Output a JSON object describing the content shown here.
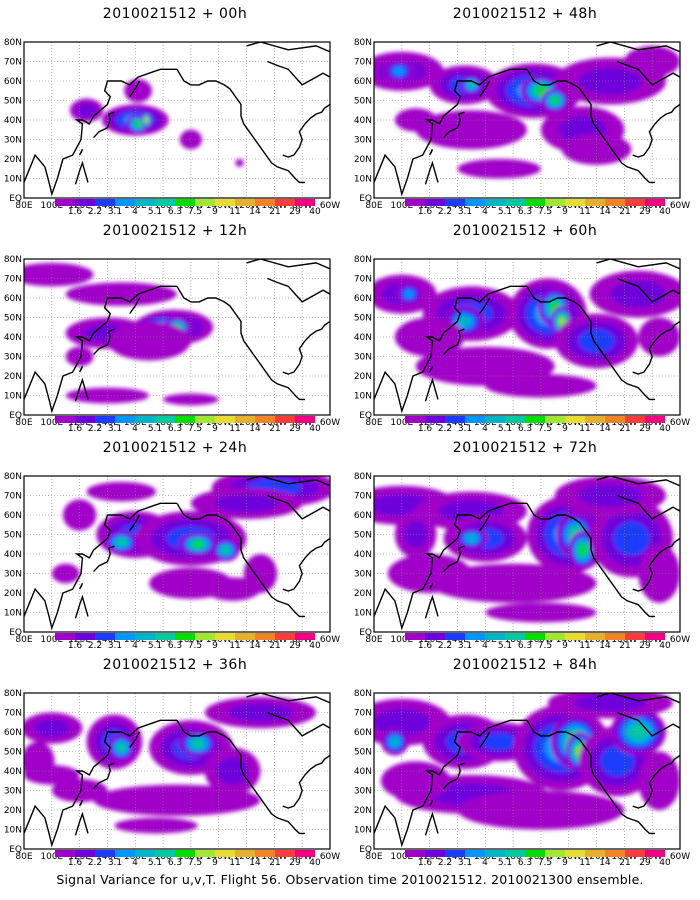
{
  "figure": {
    "caption": "Signal Variance for u,v,T. Flight 56. Observation time 2010021512. 2010021300 ensemble."
  },
  "map": {
    "lon_labels": [
      "80E",
      "100E",
      "120E",
      "140E",
      "160E",
      "180",
      "160W",
      "140W",
      "120W",
      "100W",
      "80W",
      "60W"
    ],
    "lat_labels": [
      "80N",
      "70N",
      "60N",
      "50N",
      "40N",
      "30N",
      "20N",
      "10N",
      "EQ"
    ],
    "lon_range": [
      80,
      300
    ],
    "lat_range": [
      0,
      80
    ]
  },
  "colorbar": {
    "labels": [
      "1.6",
      "2.2",
      "3.1",
      "4",
      "5.1",
      "6.3",
      "7.5",
      "9",
      "11",
      "14",
      "21",
      "29",
      "40"
    ],
    "colors": [
      "#a000c8",
      "#6e00dc",
      "#1e3cff",
      "#0096ff",
      "#00b4c8",
      "#00c8a0",
      "#00dc00",
      "#a0e632",
      "#e6dc32",
      "#e6af2d",
      "#f08228",
      "#fa3c3c",
      "#f00082"
    ]
  },
  "panels": [
    {
      "title": "2010021512 + 00h",
      "blobs": [
        [
          162,
          55,
          10,
          6,
          1
        ],
        [
          125,
          45,
          12,
          6,
          2
        ],
        [
          160,
          40,
          24,
          8,
          4
        ],
        [
          162,
          38,
          9,
          5,
          7
        ],
        [
          168,
          40,
          4,
          4,
          9
        ],
        [
          200,
          30,
          8,
          5,
          1
        ],
        [
          235,
          18,
          3,
          2,
          1
        ]
      ]
    },
    {
      "title": "2010021512 + 12h",
      "blobs": [
        [
          100,
          72,
          30,
          6,
          1
        ],
        [
          150,
          62,
          40,
          6,
          1
        ],
        [
          140,
          42,
          30,
          8,
          2
        ],
        [
          188,
          45,
          28,
          9,
          3
        ],
        [
          180,
          45,
          22,
          7,
          5
        ],
        [
          190,
          45,
          10,
          5,
          7
        ],
        [
          170,
          38,
          30,
          10,
          1
        ],
        [
          140,
          10,
          30,
          4,
          1
        ],
        [
          200,
          8,
          20,
          3,
          1
        ],
        [
          120,
          30,
          10,
          5,
          1
        ]
      ]
    },
    {
      "title": "2010021512 + 24h",
      "blobs": [
        [
          260,
          74,
          45,
          10,
          3
        ],
        [
          240,
          66,
          40,
          8,
          2
        ],
        [
          150,
          72,
          25,
          5,
          1
        ],
        [
          160,
          50,
          28,
          12,
          3
        ],
        [
          200,
          48,
          40,
          14,
          3
        ],
        [
          150,
          46,
          12,
          6,
          6
        ],
        [
          205,
          45,
          14,
          6,
          7
        ],
        [
          225,
          42,
          10,
          6,
          6
        ],
        [
          230,
          22,
          20,
          6,
          1
        ],
        [
          120,
          60,
          12,
          8,
          1
        ],
        [
          200,
          25,
          30,
          8,
          1
        ],
        [
          250,
          30,
          12,
          10,
          1
        ],
        [
          110,
          30,
          10,
          5,
          1
        ]
      ]
    },
    {
      "title": "2010021512 + 36h",
      "blobs": [
        [
          100,
          62,
          22,
          8,
          2
        ],
        [
          90,
          45,
          12,
          10,
          1
        ],
        [
          145,
          55,
          20,
          14,
          3
        ],
        [
          150,
          52,
          10,
          7,
          6
        ],
        [
          200,
          52,
          30,
          14,
          3
        ],
        [
          205,
          54,
          14,
          7,
          6
        ],
        [
          230,
          40,
          20,
          12,
          2
        ],
        [
          190,
          25,
          60,
          8,
          1
        ],
        [
          250,
          70,
          40,
          8,
          2
        ],
        [
          120,
          30,
          20,
          6,
          1
        ],
        [
          175,
          12,
          30,
          4,
          1
        ],
        [
          100,
          38,
          20,
          5,
          1
        ]
      ]
    },
    {
      "title": "2010021512 + 48h",
      "blobs": [
        [
          100,
          65,
          30,
          10,
          2
        ],
        [
          98,
          65,
          12,
          6,
          4
        ],
        [
          145,
          58,
          25,
          10,
          3
        ],
        [
          150,
          58,
          8,
          5,
          6
        ],
        [
          195,
          55,
          35,
          14,
          4
        ],
        [
          200,
          55,
          15,
          8,
          7
        ],
        [
          210,
          50,
          10,
          6,
          7
        ],
        [
          250,
          60,
          40,
          12,
          2
        ],
        [
          230,
          35,
          30,
          12,
          2
        ],
        [
          150,
          35,
          40,
          10,
          1
        ],
        [
          170,
          15,
          30,
          5,
          1
        ],
        [
          280,
          70,
          20,
          8,
          1
        ],
        [
          240,
          25,
          25,
          8,
          1
        ],
        [
          110,
          40,
          15,
          6,
          1
        ]
      ]
    },
    {
      "title": "2010021512 + 60h",
      "blobs": [
        [
          100,
          62,
          25,
          10,
          2
        ],
        [
          105,
          62,
          10,
          6,
          4
        ],
        [
          150,
          52,
          35,
          14,
          3
        ],
        [
          145,
          48,
          15,
          8,
          5
        ],
        [
          205,
          52,
          28,
          18,
          4
        ],
        [
          210,
          55,
          12,
          10,
          7
        ],
        [
          215,
          48,
          8,
          8,
          8
        ],
        [
          240,
          38,
          30,
          14,
          3
        ],
        [
          270,
          62,
          35,
          12,
          2
        ],
        [
          160,
          25,
          50,
          10,
          1
        ],
        [
          120,
          40,
          25,
          10,
          1
        ],
        [
          200,
          15,
          40,
          6,
          1
        ],
        [
          285,
          40,
          15,
          10,
          1
        ]
      ]
    },
    {
      "title": "2010021512 + 72h",
      "blobs": [
        [
          100,
          65,
          40,
          10,
          2
        ],
        [
          110,
          50,
          15,
          12,
          2
        ],
        [
          150,
          62,
          40,
          10,
          2
        ],
        [
          160,
          48,
          30,
          12,
          3
        ],
        [
          150,
          48,
          12,
          6,
          5
        ],
        [
          220,
          50,
          30,
          20,
          4
        ],
        [
          225,
          50,
          14,
          12,
          6
        ],
        [
          230,
          42,
          10,
          10,
          7
        ],
        [
          265,
          48,
          30,
          20,
          3
        ],
        [
          250,
          70,
          40,
          10,
          2
        ],
        [
          180,
          25,
          60,
          10,
          1
        ],
        [
          120,
          30,
          30,
          10,
          1
        ],
        [
          285,
          30,
          15,
          15,
          1
        ],
        [
          200,
          10,
          40,
          5,
          1
        ]
      ]
    },
    {
      "title": "2010021512 + 84h",
      "blobs": [
        [
          100,
          65,
          35,
          12,
          2
        ],
        [
          95,
          55,
          10,
          7,
          5
        ],
        [
          145,
          55,
          30,
          14,
          3
        ],
        [
          170,
          55,
          30,
          10,
          3
        ],
        [
          215,
          52,
          35,
          22,
          4
        ],
        [
          225,
          55,
          18,
          14,
          7
        ],
        [
          228,
          50,
          10,
          10,
          8
        ],
        [
          255,
          45,
          28,
          18,
          3
        ],
        [
          270,
          60,
          20,
          12,
          6
        ],
        [
          150,
          28,
          55,
          10,
          2
        ],
        [
          200,
          20,
          60,
          10,
          1
        ],
        [
          110,
          35,
          25,
          10,
          1
        ],
        [
          250,
          75,
          45,
          8,
          2
        ],
        [
          285,
          35,
          15,
          15,
          1
        ]
      ]
    }
  ]
}
